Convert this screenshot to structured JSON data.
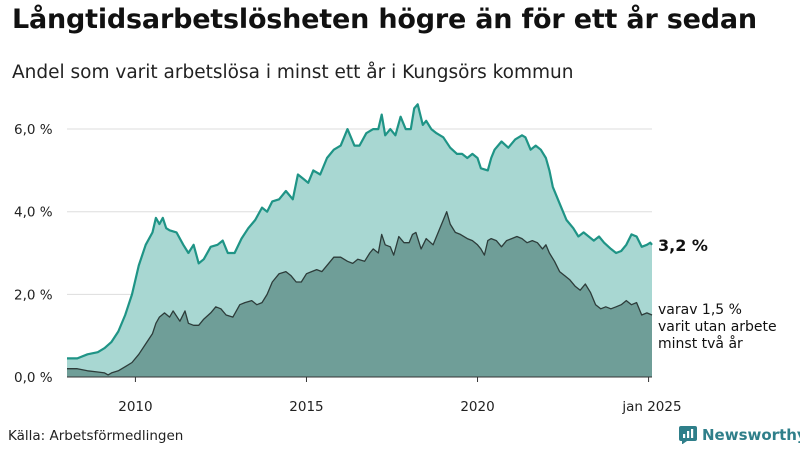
{
  "header": {
    "title": "Långtidsarbetslösheten högre än för ett år sedan",
    "subtitle": "Andel som varit arbetslösa i minst ett år i Kungsörs kommun"
  },
  "footer": {
    "source": "Källa: Arbetsförmedlingen",
    "brand": "Newsworthy"
  },
  "colors": {
    "total_area": "#a8d7d2",
    "total_line": "#1f9486",
    "long_area": "#6f9e98",
    "long_line": "#2d3c3a",
    "grid": "#dddddd",
    "brand": "#2f7f8a"
  },
  "chart_data": {
    "type": "area",
    "x_ticks": [
      {
        "x": 2010,
        "label": "2010"
      },
      {
        "x": 2015,
        "label": "2015"
      },
      {
        "x": 2020,
        "label": "2020"
      },
      {
        "x": 2025,
        "label": "jan 2025"
      }
    ],
    "y_ticks": [
      {
        "y": 0,
        "label": "0,0 %"
      },
      {
        "y": 2,
        "label": "2,0 %"
      },
      {
        "y": 4,
        "label": "4,0 %"
      },
      {
        "y": 6,
        "label": "6,0 %"
      }
    ],
    "xlim": [
      2008.0,
      2025.1
    ],
    "ylim": [
      0,
      6.8
    ],
    "grid": true,
    "annotations": {
      "total_end": "3,2 %",
      "long_end": [
        "varav 1,5 %",
        "varit utan arbete",
        "minst två år"
      ]
    },
    "series": [
      {
        "key": "total",
        "points": [
          [
            2008.0,
            0.45
          ],
          [
            2008.3,
            0.45
          ],
          [
            2008.6,
            0.55
          ],
          [
            2008.9,
            0.6
          ],
          [
            2009.1,
            0.7
          ],
          [
            2009.3,
            0.85
          ],
          [
            2009.5,
            1.1
          ],
          [
            2009.7,
            1.5
          ],
          [
            2009.9,
            2.0
          ],
          [
            2010.1,
            2.7
          ],
          [
            2010.3,
            3.2
          ],
          [
            2010.5,
            3.5
          ],
          [
            2010.6,
            3.85
          ],
          [
            2010.7,
            3.7
          ],
          [
            2010.8,
            3.85
          ],
          [
            2010.9,
            3.6
          ],
          [
            2011.0,
            3.55
          ],
          [
            2011.2,
            3.5
          ],
          [
            2011.4,
            3.2
          ],
          [
            2011.55,
            3.0
          ],
          [
            2011.7,
            3.2
          ],
          [
            2011.85,
            2.75
          ],
          [
            2012.0,
            2.85
          ],
          [
            2012.2,
            3.15
          ],
          [
            2012.4,
            3.2
          ],
          [
            2012.55,
            3.3
          ],
          [
            2012.7,
            3.0
          ],
          [
            2012.9,
            3.0
          ],
          [
            2013.1,
            3.35
          ],
          [
            2013.3,
            3.6
          ],
          [
            2013.5,
            3.8
          ],
          [
            2013.7,
            4.1
          ],
          [
            2013.85,
            4.0
          ],
          [
            2014.0,
            4.25
          ],
          [
            2014.2,
            4.3
          ],
          [
            2014.4,
            4.5
          ],
          [
            2014.6,
            4.3
          ],
          [
            2014.75,
            4.9
          ],
          [
            2014.9,
            4.8
          ],
          [
            2015.05,
            4.7
          ],
          [
            2015.2,
            5.0
          ],
          [
            2015.4,
            4.9
          ],
          [
            2015.6,
            5.3
          ],
          [
            2015.8,
            5.5
          ],
          [
            2016.0,
            5.6
          ],
          [
            2016.2,
            6.0
          ],
          [
            2016.4,
            5.6
          ],
          [
            2016.55,
            5.6
          ],
          [
            2016.75,
            5.9
          ],
          [
            2016.95,
            6.0
          ],
          [
            2017.1,
            6.0
          ],
          [
            2017.2,
            6.35
          ],
          [
            2017.3,
            5.85
          ],
          [
            2017.45,
            6.0
          ],
          [
            2017.6,
            5.85
          ],
          [
            2017.75,
            6.3
          ],
          [
            2017.9,
            6.0
          ],
          [
            2018.05,
            6.0
          ],
          [
            2018.15,
            6.5
          ],
          [
            2018.25,
            6.6
          ],
          [
            2018.4,
            6.1
          ],
          [
            2018.5,
            6.2
          ],
          [
            2018.65,
            6.0
          ],
          [
            2018.8,
            5.9
          ],
          [
            2019.0,
            5.8
          ],
          [
            2019.2,
            5.55
          ],
          [
            2019.4,
            5.4
          ],
          [
            2019.55,
            5.4
          ],
          [
            2019.7,
            5.3
          ],
          [
            2019.85,
            5.4
          ],
          [
            2020.0,
            5.3
          ],
          [
            2020.1,
            5.05
          ],
          [
            2020.3,
            5.0
          ],
          [
            2020.4,
            5.3
          ],
          [
            2020.5,
            5.5
          ],
          [
            2020.7,
            5.7
          ],
          [
            2020.9,
            5.55
          ],
          [
            2021.1,
            5.75
          ],
          [
            2021.3,
            5.85
          ],
          [
            2021.4,
            5.8
          ],
          [
            2021.55,
            5.5
          ],
          [
            2021.7,
            5.6
          ],
          [
            2021.85,
            5.5
          ],
          [
            2022.0,
            5.3
          ],
          [
            2022.1,
            5.0
          ],
          [
            2022.2,
            4.6
          ],
          [
            2022.4,
            4.2
          ],
          [
            2022.6,
            3.8
          ],
          [
            2022.8,
            3.6
          ],
          [
            2022.95,
            3.4
          ],
          [
            2023.1,
            3.5
          ],
          [
            2023.25,
            3.4
          ],
          [
            2023.4,
            3.3
          ],
          [
            2023.55,
            3.4
          ],
          [
            2023.7,
            3.25
          ],
          [
            2023.9,
            3.1
          ],
          [
            2024.05,
            3.0
          ],
          [
            2024.2,
            3.05
          ],
          [
            2024.35,
            3.2
          ],
          [
            2024.5,
            3.45
          ],
          [
            2024.65,
            3.4
          ],
          [
            2024.8,
            3.15
          ],
          [
            2024.95,
            3.2
          ],
          [
            2025.05,
            3.25
          ],
          [
            2025.1,
            3.2
          ]
        ]
      },
      {
        "key": "long",
        "points": [
          [
            2008.0,
            0.2
          ],
          [
            2008.3,
            0.2
          ],
          [
            2008.6,
            0.15
          ],
          [
            2008.9,
            0.12
          ],
          [
            2009.1,
            0.1
          ],
          [
            2009.2,
            0.05
          ],
          [
            2009.3,
            0.1
          ],
          [
            2009.5,
            0.15
          ],
          [
            2009.7,
            0.25
          ],
          [
            2009.9,
            0.35
          ],
          [
            2010.1,
            0.55
          ],
          [
            2010.3,
            0.8
          ],
          [
            2010.5,
            1.05
          ],
          [
            2010.6,
            1.3
          ],
          [
            2010.7,
            1.45
          ],
          [
            2010.85,
            1.55
          ],
          [
            2011.0,
            1.45
          ],
          [
            2011.1,
            1.6
          ],
          [
            2011.3,
            1.35
          ],
          [
            2011.45,
            1.6
          ],
          [
            2011.55,
            1.3
          ],
          [
            2011.7,
            1.25
          ],
          [
            2011.85,
            1.25
          ],
          [
            2012.0,
            1.4
          ],
          [
            2012.2,
            1.55
          ],
          [
            2012.35,
            1.7
          ],
          [
            2012.5,
            1.65
          ],
          [
            2012.65,
            1.5
          ],
          [
            2012.85,
            1.45
          ],
          [
            2013.05,
            1.75
          ],
          [
            2013.2,
            1.8
          ],
          [
            2013.4,
            1.85
          ],
          [
            2013.55,
            1.75
          ],
          [
            2013.7,
            1.8
          ],
          [
            2013.85,
            2.0
          ],
          [
            2014.0,
            2.3
          ],
          [
            2014.2,
            2.5
          ],
          [
            2014.4,
            2.55
          ],
          [
            2014.55,
            2.45
          ],
          [
            2014.7,
            2.3
          ],
          [
            2014.85,
            2.3
          ],
          [
            2015.0,
            2.5
          ],
          [
            2015.15,
            2.55
          ],
          [
            2015.3,
            2.6
          ],
          [
            2015.45,
            2.55
          ],
          [
            2015.6,
            2.7
          ],
          [
            2015.8,
            2.9
          ],
          [
            2016.0,
            2.9
          ],
          [
            2016.2,
            2.8
          ],
          [
            2016.35,
            2.75
          ],
          [
            2016.5,
            2.85
          ],
          [
            2016.7,
            2.8
          ],
          [
            2016.85,
            3.0
          ],
          [
            2016.95,
            3.1
          ],
          [
            2017.1,
            3.0
          ],
          [
            2017.2,
            3.45
          ],
          [
            2017.3,
            3.2
          ],
          [
            2017.45,
            3.15
          ],
          [
            2017.55,
            2.95
          ],
          [
            2017.7,
            3.4
          ],
          [
            2017.85,
            3.25
          ],
          [
            2018.0,
            3.25
          ],
          [
            2018.1,
            3.45
          ],
          [
            2018.2,
            3.5
          ],
          [
            2018.35,
            3.1
          ],
          [
            2018.5,
            3.35
          ],
          [
            2018.7,
            3.2
          ],
          [
            2018.85,
            3.5
          ],
          [
            2019.0,
            3.8
          ],
          [
            2019.1,
            4.0
          ],
          [
            2019.2,
            3.7
          ],
          [
            2019.35,
            3.5
          ],
          [
            2019.5,
            3.45
          ],
          [
            2019.7,
            3.35
          ],
          [
            2019.85,
            3.3
          ],
          [
            2020.0,
            3.2
          ],
          [
            2020.1,
            3.1
          ],
          [
            2020.2,
            2.95
          ],
          [
            2020.3,
            3.3
          ],
          [
            2020.4,
            3.35
          ],
          [
            2020.55,
            3.3
          ],
          [
            2020.7,
            3.15
          ],
          [
            2020.85,
            3.3
          ],
          [
            2021.0,
            3.35
          ],
          [
            2021.15,
            3.4
          ],
          [
            2021.3,
            3.35
          ],
          [
            2021.45,
            3.25
          ],
          [
            2021.6,
            3.3
          ],
          [
            2021.75,
            3.25
          ],
          [
            2021.9,
            3.1
          ],
          [
            2022.0,
            3.2
          ],
          [
            2022.1,
            3.0
          ],
          [
            2022.25,
            2.8
          ],
          [
            2022.4,
            2.55
          ],
          [
            2022.55,
            2.45
          ],
          [
            2022.7,
            2.35
          ],
          [
            2022.85,
            2.2
          ],
          [
            2023.0,
            2.1
          ],
          [
            2023.15,
            2.25
          ],
          [
            2023.3,
            2.05
          ],
          [
            2023.45,
            1.75
          ],
          [
            2023.6,
            1.65
          ],
          [
            2023.75,
            1.7
          ],
          [
            2023.9,
            1.65
          ],
          [
            2024.05,
            1.7
          ],
          [
            2024.2,
            1.75
          ],
          [
            2024.35,
            1.85
          ],
          [
            2024.5,
            1.75
          ],
          [
            2024.65,
            1.8
          ],
          [
            2024.8,
            1.5
          ],
          [
            2024.95,
            1.55
          ],
          [
            2025.1,
            1.5
          ]
        ]
      }
    ]
  }
}
